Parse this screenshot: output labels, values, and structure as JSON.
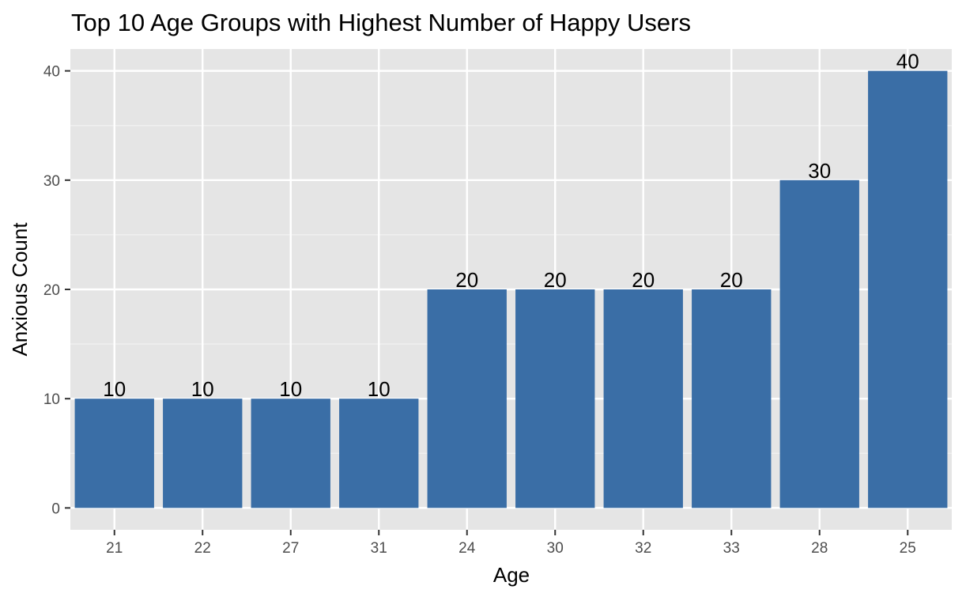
{
  "chart_data": {
    "type": "bar",
    "title": "Top 10 Age Groups with Highest Number of Happy Users",
    "xlabel": "Age",
    "ylabel": "Anxious Count",
    "categories": [
      "21",
      "22",
      "27",
      "31",
      "24",
      "30",
      "32",
      "33",
      "28",
      "25"
    ],
    "values": [
      10,
      10,
      10,
      10,
      20,
      20,
      20,
      20,
      30,
      40
    ],
    "data_labels": [
      "10",
      "10",
      "10",
      "10",
      "20",
      "20",
      "20",
      "20",
      "30",
      "40"
    ],
    "y_ticks": [
      0,
      10,
      20,
      30,
      40
    ],
    "y_tick_labels": [
      "0",
      "10",
      "20",
      "30",
      "40"
    ],
    "ylim": [
      -2,
      42
    ],
    "grid": true,
    "legend": "none",
    "colors": {
      "bar": "#3a6ea6",
      "panel_background": "#e5e5e5",
      "grid_major": "#ffffff",
      "grid_minor": "#f2f2f2"
    }
  }
}
